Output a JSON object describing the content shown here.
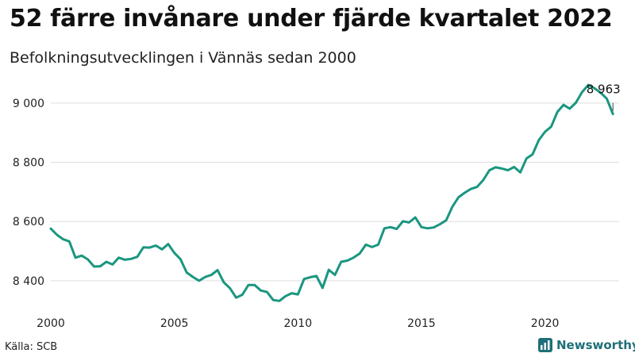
{
  "header": {
    "title": "52 färre invånare under fjärde kvartalet 2022",
    "subtitle": "Befolkningsutvecklingen i Vännäs sedan 2000"
  },
  "footer": {
    "source": "Källa: SCB",
    "brand": "Newsworthy",
    "brand_icon": "chart-logo-icon"
  },
  "colors": {
    "line": "#1a9680",
    "grid": "#dddddd",
    "brand": "#1f6f78"
  },
  "chart_data": {
    "type": "line",
    "x_tick_labels": [
      "2000",
      "2005",
      "2010",
      "2015",
      "2020"
    ],
    "x_ticks": [
      2000,
      2005,
      2010,
      2015,
      2020
    ],
    "y_tick_labels": [
      "8 400",
      "8 600",
      "8 800",
      "9 000"
    ],
    "y_ticks": [
      8400,
      8600,
      8800,
      9000
    ],
    "ylim": [
      8290,
      9080
    ],
    "xlim": [
      2000,
      2023
    ],
    "grid": true,
    "annotation": {
      "label": "8 963",
      "x": 2022.75,
      "y": 8963
    },
    "series": [
      {
        "x": [
          2000.0,
          2000.25,
          2000.5,
          2000.75,
          2001.0,
          2001.25,
          2001.5,
          2001.75,
          2002.0,
          2002.25,
          2002.5,
          2002.75,
          2003.0,
          2003.25,
          2003.5,
          2003.75,
          2004.0,
          2004.25,
          2004.5,
          2004.75,
          2005.0,
          2005.25,
          2005.5,
          2005.75,
          2006.0,
          2006.25,
          2006.5,
          2006.75,
          2007.0,
          2007.25,
          2007.5,
          2007.75,
          2008.0,
          2008.25,
          2008.5,
          2008.75,
          2009.0,
          2009.25,
          2009.5,
          2009.75,
          2010.0,
          2010.25,
          2010.5,
          2010.75,
          2011.0,
          2011.25,
          2011.5,
          2011.75,
          2012.0,
          2012.25,
          2012.5,
          2012.75,
          2013.0,
          2013.25,
          2013.5,
          2013.75,
          2014.0,
          2014.25,
          2014.5,
          2014.75,
          2015.0,
          2015.25,
          2015.5,
          2015.75,
          2016.0,
          2016.25,
          2016.5,
          2016.75,
          2017.0,
          2017.25,
          2017.5,
          2017.75,
          2018.0,
          2018.25,
          2018.5,
          2018.75,
          2019.0,
          2019.25,
          2019.5,
          2019.75,
          2020.0,
          2020.25,
          2020.5,
          2020.75,
          2021.0,
          2021.25,
          2021.5,
          2021.75,
          2022.0,
          2022.25,
          2022.5,
          2022.75
        ],
        "values": [
          8576,
          8555,
          8540,
          8533,
          8478,
          8485,
          8472,
          8448,
          8449,
          8464,
          8455,
          8478,
          8471,
          8474,
          8481,
          8513,
          8512,
          8519,
          8506,
          8524,
          8494,
          8473,
          8428,
          8413,
          8400,
          8413,
          8420,
          8436,
          8395,
          8375,
          8343,
          8353,
          8386,
          8386,
          8367,
          8362,
          8335,
          8332,
          8348,
          8358,
          8354,
          8406,
          8412,
          8416,
          8376,
          8437,
          8420,
          8464,
          8468,
          8478,
          8492,
          8522,
          8514,
          8522,
          8577,
          8581,
          8575,
          8601,
          8597,
          8614,
          8581,
          8577,
          8580,
          8591,
          8604,
          8650,
          8682,
          8697,
          8710,
          8717,
          8740,
          8773,
          8783,
          8779,
          8773,
          8784,
          8766,
          8813,
          8827,
          8875,
          8903,
          8920,
          8970,
          8994,
          8981,
          9001,
          9037,
          9061,
          9050,
          9035,
          9015,
          8963
        ]
      }
    ]
  }
}
